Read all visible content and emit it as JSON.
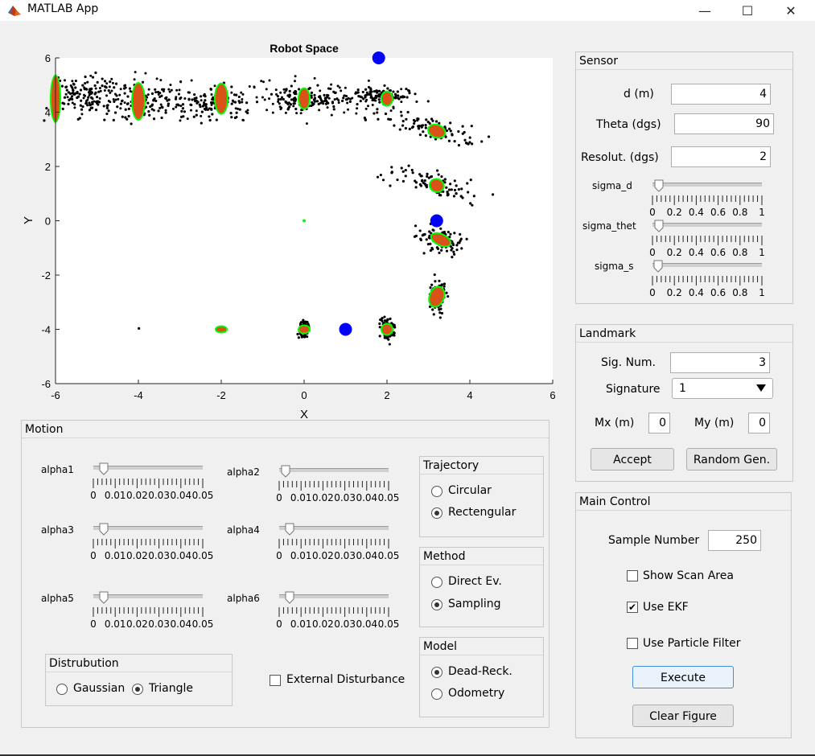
{
  "window": {
    "title": "MATLAB App",
    "minimize": "—",
    "maximize": "☐",
    "close": "✕"
  },
  "plot": {
    "title": "Robot Space",
    "xlabel": "X",
    "ylabel": "Y",
    "xticks": [
      "-6",
      "-4",
      "-2",
      "0",
      "2",
      "4",
      "6"
    ],
    "yticks": [
      "6",
      "4",
      "2",
      "0",
      "-2",
      "-4",
      "-6"
    ]
  },
  "chart_data": {
    "type": "scatter",
    "title": "Robot Space",
    "xlabel": "X",
    "ylabel": "Y",
    "xlim": [
      -6,
      6
    ],
    "ylim": [
      -6,
      6
    ],
    "grid": false,
    "landmarks": [
      [
        1.8,
        6.0
      ],
      [
        3.2,
        0.0
      ],
      [
        1.0,
        -4.0
      ]
    ],
    "path_centers": [
      [
        -6.0,
        4.5
      ],
      [
        -4.0,
        4.4
      ],
      [
        -2.0,
        4.5
      ],
      [
        0.0,
        4.5
      ],
      [
        2.0,
        4.5
      ],
      [
        3.2,
        3.3
      ],
      [
        3.2,
        1.3
      ],
      [
        3.3,
        -0.7
      ],
      [
        3.2,
        -2.8
      ],
      [
        2.0,
        -4.0
      ],
      [
        0.0,
        -4.0
      ],
      [
        -2.0,
        -4.0
      ]
    ],
    "cloud_centers": [
      [
        -5.4,
        4.6
      ],
      [
        -4.0,
        4.3
      ],
      [
        -2.2,
        4.3
      ],
      [
        0.0,
        4.5
      ],
      [
        1.9,
        4.6
      ],
      [
        3.1,
        3.4
      ],
      [
        3.0,
        1.4
      ],
      [
        3.3,
        -0.7
      ],
      [
        3.2,
        -2.8
      ],
      [
        2.0,
        -4.0
      ],
      [
        0.0,
        -4.0
      ],
      [
        -4.0,
        -4.0
      ],
      [
        0.0,
        0.0
      ]
    ],
    "series": [
      {
        "name": "particles",
        "color": "#000000"
      },
      {
        "name": "ekf estimate",
        "color": "#d95319"
      },
      {
        "name": "landmarks",
        "color": "#0000ff"
      },
      {
        "name": "samples",
        "color": "#00ff00"
      }
    ]
  },
  "motion": {
    "title": "Motion",
    "sliders": [
      {
        "label": "alpha1",
        "value": 0.003
      },
      {
        "label": "alpha2",
        "value": 0.001
      },
      {
        "label": "alpha3",
        "value": 0.003
      },
      {
        "label": "alpha4",
        "value": 0.003
      },
      {
        "label": "alpha5",
        "value": 0.003
      },
      {
        "label": "alpha6",
        "value": 0.003
      }
    ],
    "tick_labels": [
      "0",
      "0.01",
      "0.02",
      "0.03",
      "0.04",
      "0.05"
    ],
    "distribution": {
      "title": "Distrubution",
      "gaussian": "Gaussian",
      "triangle": "Triangle"
    },
    "external_disturbance": "External Disturbance"
  },
  "trajectory": {
    "title": "Trajectory",
    "circular": "Circular",
    "rectengular": "Rectengular"
  },
  "method": {
    "title": "Method",
    "direct": "Direct Ev.",
    "sampling": "Sampling"
  },
  "model": {
    "title": "Model",
    "dead_reck": "Dead-Reck.",
    "odometry": "Odometry"
  },
  "sensor": {
    "title": "Sensor",
    "d_label": "d (m)",
    "d_value": "4",
    "theta_label": "Theta (dgs)",
    "theta_value": "90",
    "res_label": "Resolut. (dgs)",
    "res_value": "2",
    "sigma_d": "sigma_d",
    "sigma_thet": "sigma_thet",
    "sigma_s": "sigma_s",
    "sigma_values": [
      0.02,
      0.02,
      0.01
    ],
    "tick_labels": [
      "0",
      "0.2",
      "0.4",
      "0.6",
      "0.8",
      "1"
    ]
  },
  "landmark": {
    "title": "Landmark",
    "sig_num_label": "Sig. Num.",
    "sig_num_value": "3",
    "signature_label": "Signature",
    "signature_value": "1",
    "mx_label": "Mx (m)",
    "mx_value": "0",
    "my_label": "My (m)",
    "my_value": "0",
    "accept": "Accept",
    "random": "Random Gen."
  },
  "main_control": {
    "title": "Main Control",
    "sample_label": "Sample Number",
    "sample_value": "250",
    "show_scan": "Show Scan Area",
    "use_ekf": "Use EKF",
    "use_pf": "Use Particle Filter",
    "execute": "Execute",
    "clear": "Clear Figure"
  }
}
